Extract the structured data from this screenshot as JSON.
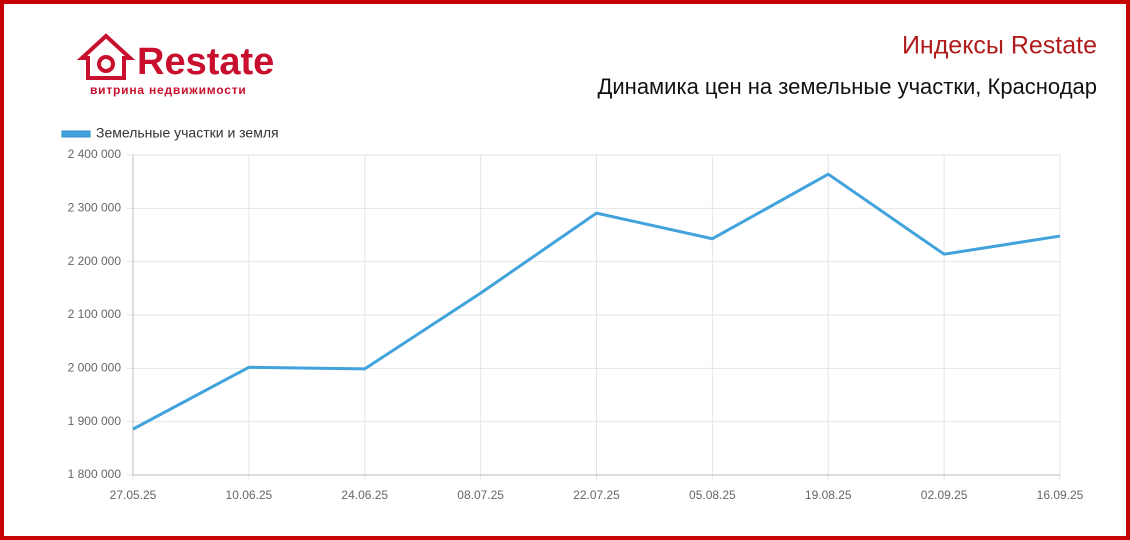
{
  "brand": {
    "name": "Restate",
    "tagline": "витрина недвижимости"
  },
  "chart_data": {
    "type": "line",
    "title": "Индексы Restate",
    "subtitle": "Динамика цен на земельные участки, Краснодар",
    "categories": [
      "27.05.25",
      "10.06.25",
      "24.06.25",
      "08.07.25",
      "22.07.25",
      "05.08.25",
      "19.08.25",
      "02.09.25",
      "16.09.25"
    ],
    "series": [
      {
        "name": "Земельные участки и земля",
        "color": "#42a3dc",
        "values": [
          1886000,
          2002000,
          1999000,
          2141000,
          2291000,
          2243000,
          2364000,
          2214000,
          2248000
        ]
      }
    ],
    "ylim": [
      1800000,
      2400000
    ],
    "yticks": [
      {
        "value": 1800000,
        "label": "1 800 000"
      },
      {
        "value": 1900000,
        "label": "1 900 000"
      },
      {
        "value": 2000000,
        "label": "2 000 000"
      },
      {
        "value": 2100000,
        "label": "2 100 000"
      },
      {
        "value": 2200000,
        "label": "2 200 000"
      },
      {
        "value": 2300000,
        "label": "2 300 000"
      },
      {
        "value": 2400000,
        "label": "2 400 000"
      }
    ],
    "grid": true,
    "legend": "top-left"
  }
}
